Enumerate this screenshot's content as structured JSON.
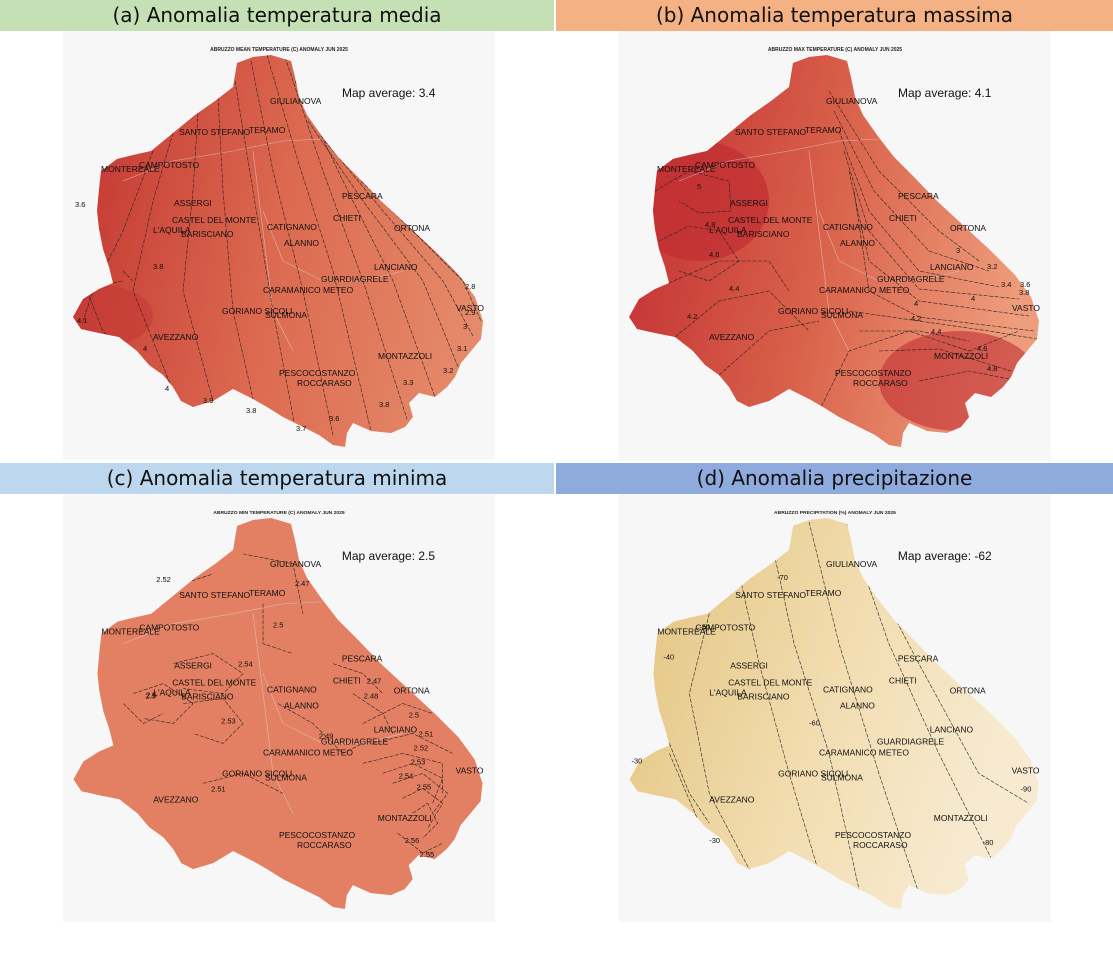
{
  "panels": [
    {
      "id": "a",
      "header": "(a) Anomalia temperatura media",
      "header_color": "#c5e0b4",
      "map_title": "ABRUZZO MEAN TEMPERATURE (C) ANOMALY JUN 2025",
      "map_average": "Map average: 3.4",
      "fill_base": "#dc6a50",
      "fill_high": "#c53a35",
      "fill_low": "#e58a6a",
      "contour_labels": [
        "4.1",
        "4",
        "4",
        "3.9",
        "3.8",
        "3.7",
        "3.6",
        "3.8",
        "3.3",
        "3.2",
        "3.1",
        "3",
        "2.9",
        "2.8",
        "3.6",
        "3.8"
      ]
    },
    {
      "id": "b",
      "header": "(b) Anomalia temperatura massima",
      "header_color": "#f4b183",
      "map_title": "ABRUZZO MAX TEMPERATURE (C) ANOMALY JUN 2025",
      "map_average": "Map average: 4.1",
      "fill_base": "#d9614a",
      "fill_high": "#c22f33",
      "fill_low": "#ee9d7c",
      "contour_labels": [
        "5",
        "4.8",
        "4.6",
        "4.4",
        "4.2",
        "4",
        "3",
        "3.2",
        "3.4",
        "3.6",
        "3.8",
        "4",
        "4.2",
        "4.4",
        "4.6",
        "4.8"
      ]
    },
    {
      "id": "c",
      "header": "(c) Anomalia temperatura minima",
      "header_color": "#bdd7ee",
      "map_title": "ABRUZZO MIN TEMPERATURE (C) ANOMALY JUN 2025",
      "map_average": "Map average: 2.5",
      "fill_base": "#e37f62",
      "fill_high": "#e37f62",
      "fill_low": "#e37f62",
      "contour_labels": [
        "2.52",
        "2.47",
        "2.5",
        "2.54",
        "2.5",
        "2.53",
        "2.49",
        "2.47",
        "2.48",
        "2.5",
        "2.51",
        "2.52",
        "2.53",
        "2.54",
        "2.55",
        "2.56",
        "2.55",
        "2.51",
        "2.5"
      ]
    },
    {
      "id": "d",
      "header": "(d) Anomalia precipitazione",
      "header_color": "#8faadc",
      "map_title": "ABRUZZO PRECIPITATION (%) ANOMALY JUN 2025",
      "map_average": "Map average: -62",
      "fill_base": "#f2ddb0",
      "fill_high": "#e6c98a",
      "fill_low": "#f7ead0",
      "contour_labels": [
        "-70",
        "-50",
        "-40",
        "-30",
        "-60",
        "-30",
        "-90",
        "-80"
      ]
    }
  ],
  "cities": [
    "GIULIANOVA",
    "TERAMO",
    "SANTO STEFANO",
    "CAMPOTOSTO",
    "MONTEREALE",
    "PESCARA",
    "ASSERGI",
    "CHIETI",
    "CASTEL DEL MONTE",
    "CATIGNANO",
    "ORTONA",
    "L'AQUILA",
    "BARISCIANO",
    "ALANNO",
    "LANCIANO",
    "GUARDIAGRELE",
    "CARAMANICO METEO",
    "VASTO",
    "GORIANO SICOLI",
    "SULMONA",
    "AVEZZANO",
    "MONTAZZOLI",
    "PESCOCOSTANZO",
    "ROCCARASO"
  ]
}
